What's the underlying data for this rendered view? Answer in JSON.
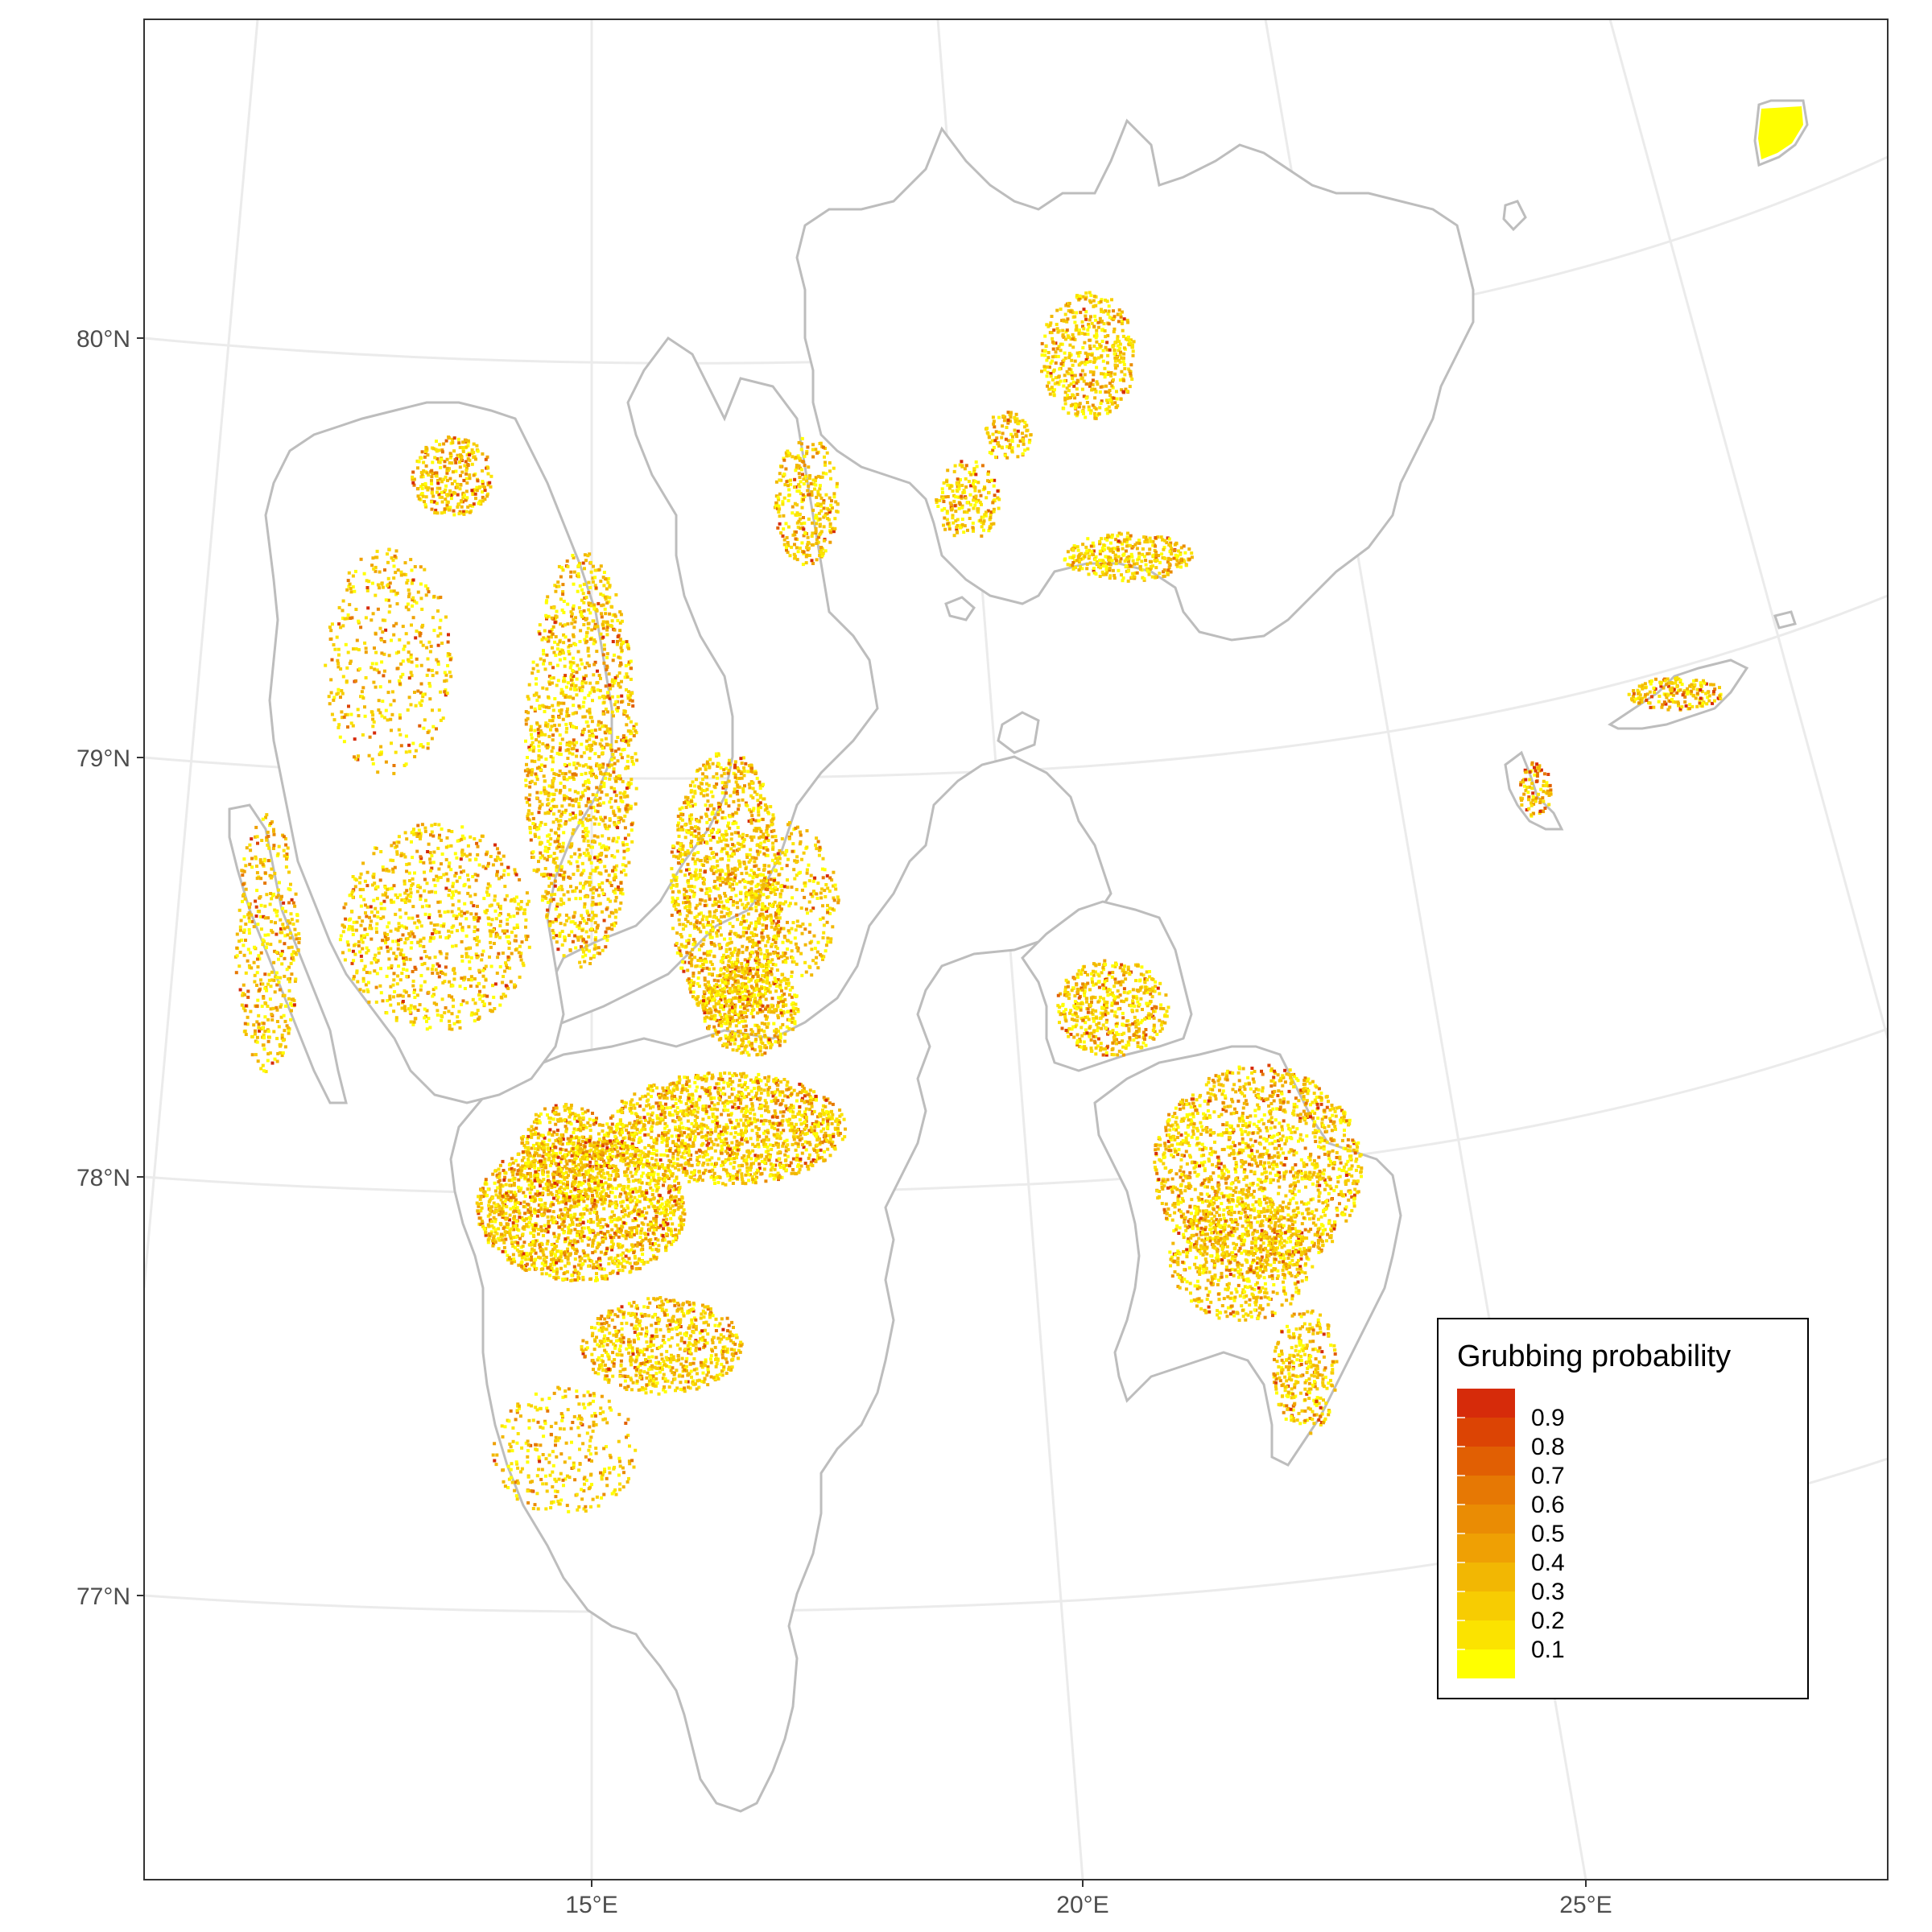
{
  "map": {
    "graticule": {
      "lat_labels": [
        "80°N",
        "79°N",
        "78°N",
        "77°N"
      ],
      "lon_labels": [
        "15°E",
        "20°E",
        "25°E"
      ]
    },
    "legend": {
      "title": "Grubbing probability",
      "labels": [
        "0.9",
        "0.8",
        "0.7",
        "0.6",
        "0.5",
        "0.4",
        "0.3",
        "0.2",
        "0.1"
      ],
      "colors": [
        "#d62b0a",
        "#dc4404",
        "#e15f03",
        "#e67804",
        "#ea8c04",
        "#efa004",
        "#f2b703",
        "#f7cc02",
        "#fbe300",
        "#ffff00"
      ]
    },
    "colors": {
      "land_outline": "#bdbdbd",
      "graticule": "#ebebeb",
      "frame": "#333333",
      "high": "#cc2200",
      "low": "#ffff00"
    }
  }
}
